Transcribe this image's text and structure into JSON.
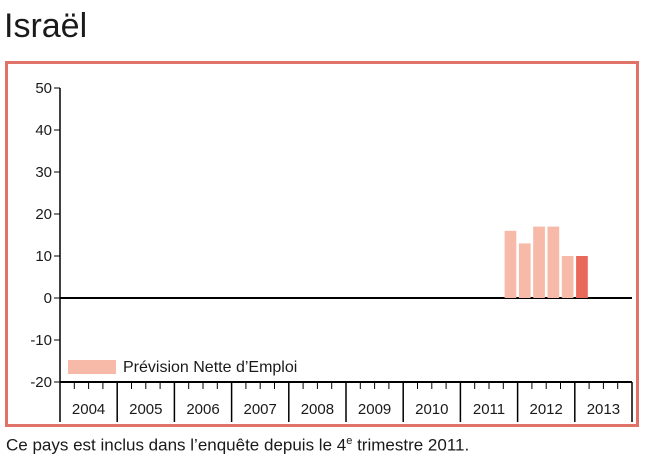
{
  "title": "Israël",
  "footnote": {
    "text": "Ce pays est inclus dans l’enquête depuis le 4",
    "sup": "e",
    "text_end": " trimestre 2011."
  },
  "chart_data": {
    "type": "bar",
    "legend": {
      "label": "Prévision Nette d’Emploi",
      "placement": "bottom-left"
    },
    "y_ticks": [
      50,
      40,
      30,
      20,
      10,
      0,
      -10,
      -20
    ],
    "ylim": [
      -20,
      50
    ],
    "x_years": [
      "2004",
      "2005",
      "2006",
      "2007",
      "2008",
      "2009",
      "2010",
      "2011",
      "2012",
      "2013"
    ],
    "quarters_per_year": 4,
    "series": [
      {
        "points": [
          {
            "period": "2011 T4",
            "value": 16
          },
          {
            "period": "2012 T1",
            "value": 13
          },
          {
            "period": "2012 T2",
            "value": 17
          },
          {
            "period": "2012 T3",
            "value": 17
          },
          {
            "period": "2012 T4",
            "value": 10
          },
          {
            "period": "2013 T1",
            "value": 10
          }
        ]
      }
    ],
    "colors": {
      "bar": "#f7b9a8",
      "latest_bar": "#e8695a",
      "frame": "#e07368",
      "axis": "#000000"
    }
  }
}
